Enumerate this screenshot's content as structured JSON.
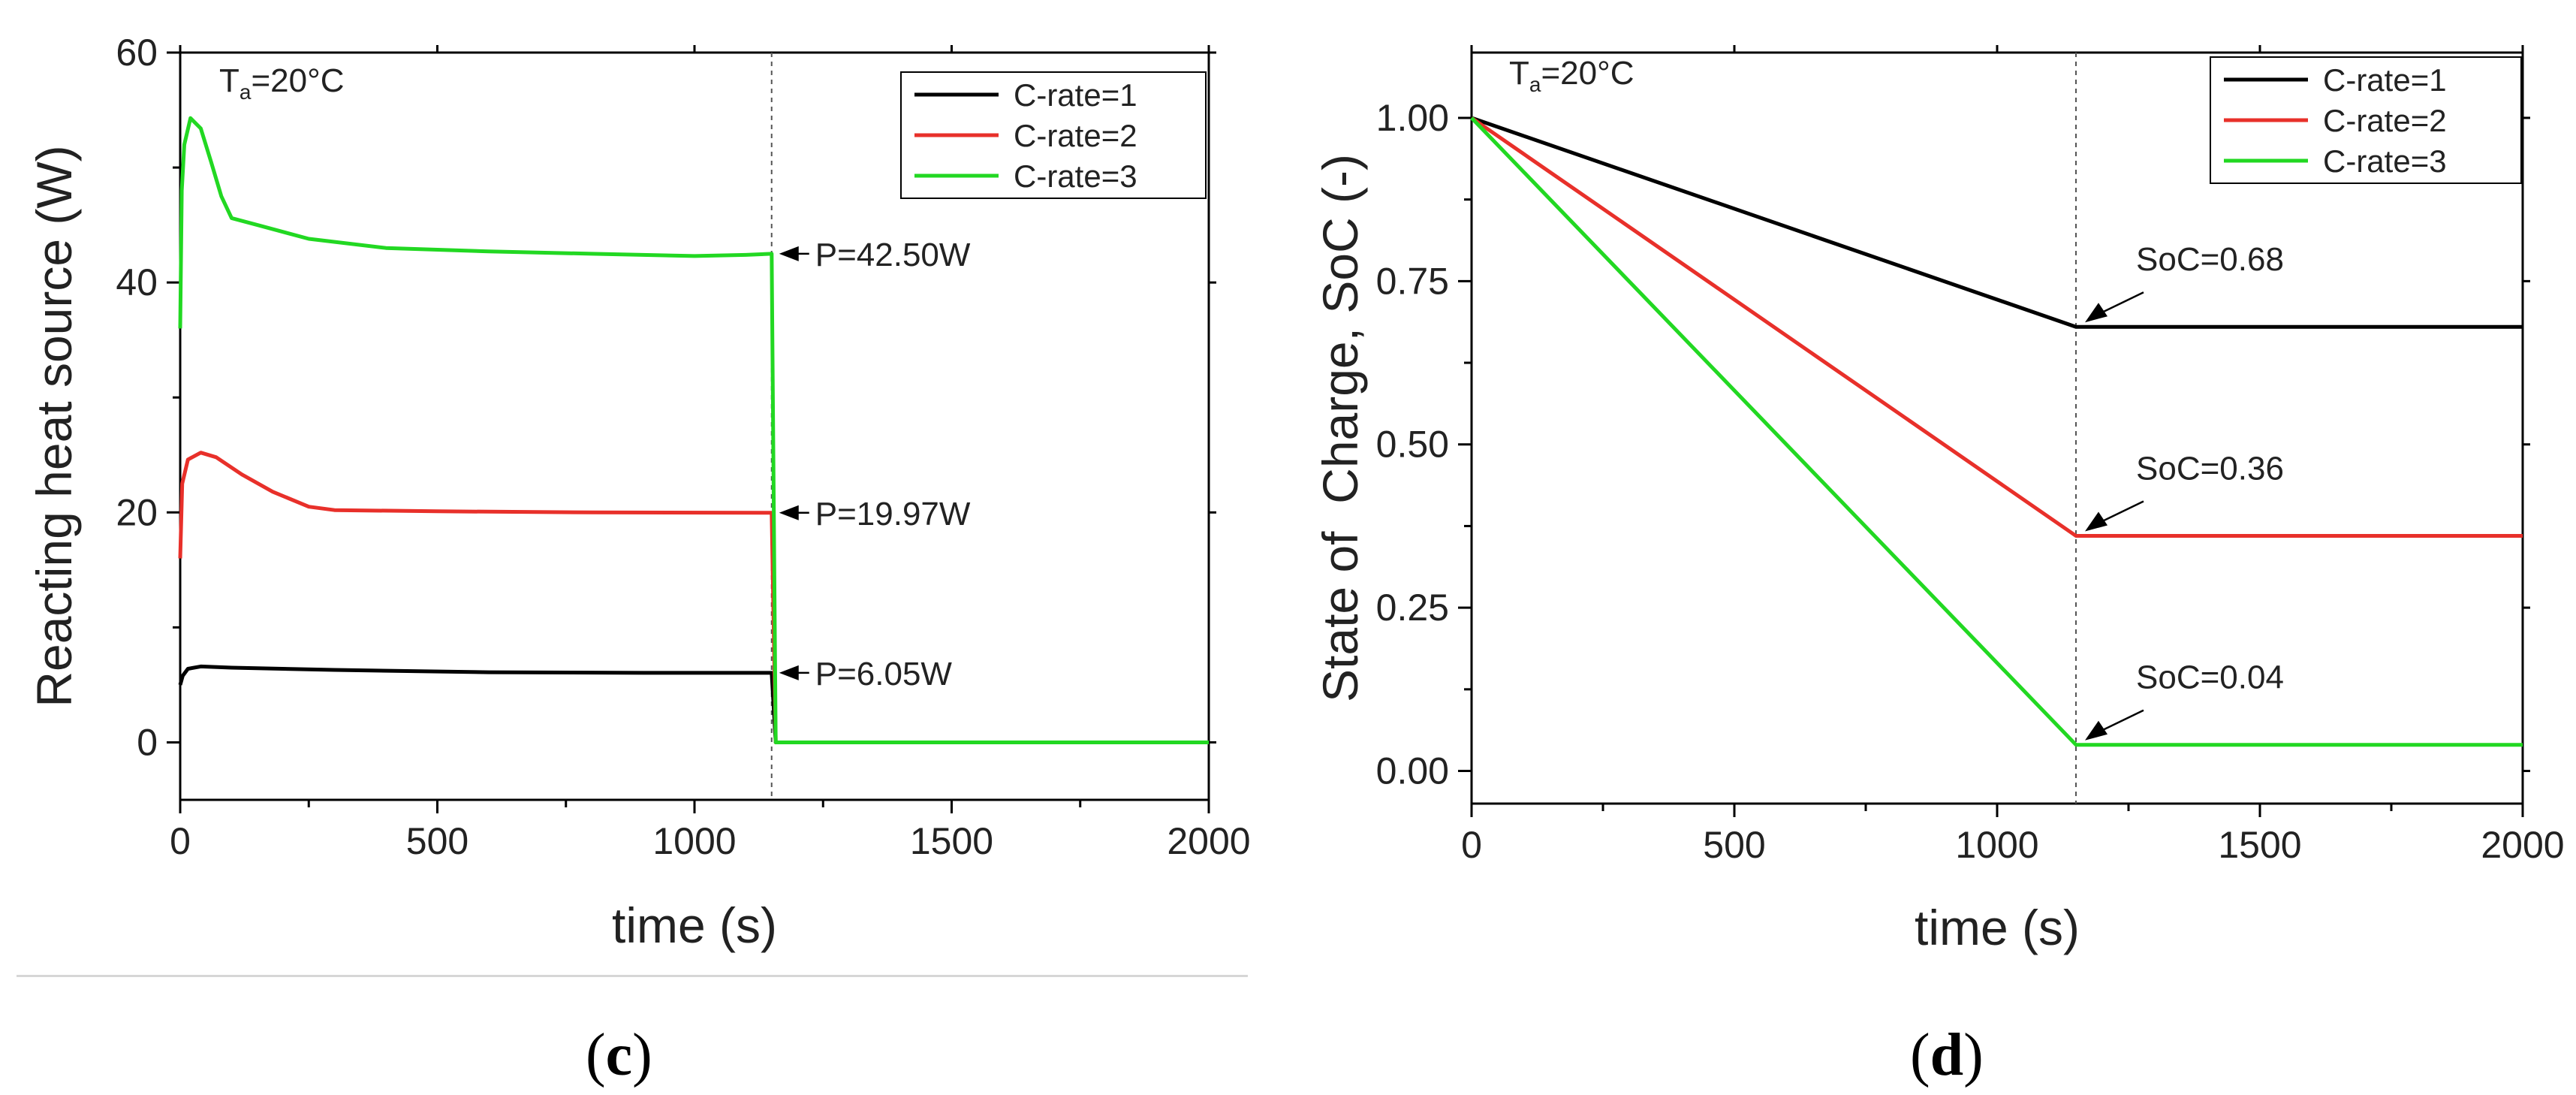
{
  "figure": {
    "panels": [
      {
        "label_open": "(",
        "label_letter": "c",
        "label_close": ")"
      },
      {
        "label_open": "(",
        "label_letter": "d",
        "label_close": ")"
      }
    ]
  },
  "chart_data": [
    {
      "type": "line",
      "title": "",
      "temperature_label": "Ta=20°C",
      "xlabel": "time (s)",
      "ylabel": "Reacting heat source (W)",
      "xlim": [
        0,
        2000
      ],
      "ylim": [
        -5,
        60
      ],
      "x_ticks": [
        0,
        500,
        1000,
        1500,
        2000
      ],
      "y_ticks": [
        0,
        20,
        40,
        60
      ],
      "legend_position": "top-right",
      "grid": false,
      "dashed_vline_x": 1150,
      "series": [
        {
          "name": "C-rate=1",
          "color": "#000000",
          "points": [
            [
              0,
              5
            ],
            [
              5,
              5.8
            ],
            [
              15,
              6.4
            ],
            [
              40,
              6.6
            ],
            [
              100,
              6.5
            ],
            [
              300,
              6.3
            ],
            [
              600,
              6.1
            ],
            [
              900,
              6.05
            ],
            [
              1150,
              6.05
            ],
            [
              1158,
              0
            ],
            [
              2000,
              0
            ]
          ]
        },
        {
          "name": "C-rate=2",
          "color": "#e8302a",
          "points": [
            [
              0,
              16
            ],
            [
              4,
              22.5
            ],
            [
              15,
              24.6
            ],
            [
              40,
              25.2
            ],
            [
              70,
              24.8
            ],
            [
              120,
              23.3
            ],
            [
              180,
              21.8
            ],
            [
              250,
              20.5
            ],
            [
              300,
              20.2
            ],
            [
              500,
              20.1
            ],
            [
              800,
              20.0
            ],
            [
              1150,
              19.97
            ],
            [
              1158,
              0
            ],
            [
              2000,
              0
            ]
          ]
        },
        {
          "name": "C-rate=3",
          "color": "#22d822",
          "points": [
            [
              0,
              36
            ],
            [
              3,
              48
            ],
            [
              8,
              52
            ],
            [
              20,
              54.3
            ],
            [
              40,
              53.4
            ],
            [
              60,
              50.5
            ],
            [
              80,
              47.5
            ],
            [
              100,
              45.6
            ],
            [
              150,
              45.0
            ],
            [
              250,
              43.8
            ],
            [
              400,
              43.0
            ],
            [
              600,
              42.7
            ],
            [
              800,
              42.5
            ],
            [
              1000,
              42.3
            ],
            [
              1100,
              42.4
            ],
            [
              1150,
              42.5
            ],
            [
              1158,
              0
            ],
            [
              2000,
              0
            ]
          ]
        }
      ],
      "annotations": [
        {
          "text": "P=42.50W",
          "x": 1150,
          "y": 42.5
        },
        {
          "text": "P=19.97W",
          "x": 1150,
          "y": 19.97
        },
        {
          "text": "P=6.05W",
          "x": 1150,
          "y": 6.05
        }
      ]
    },
    {
      "type": "line",
      "title": "",
      "temperature_label": "Ta=20°C",
      "xlabel": "time (s)",
      "ylabel": "State of  Charge, SoC (-)",
      "xlim": [
        0,
        2000
      ],
      "ylim": [
        -0.05,
        1.1
      ],
      "x_ticks": [
        0,
        500,
        1000,
        1500,
        2000
      ],
      "y_ticks": [
        "0.00",
        "0.25",
        "0.50",
        "0.75",
        "1.00"
      ],
      "legend_position": "top-right",
      "grid": false,
      "dashed_vline_x": 1150,
      "series": [
        {
          "name": "C-rate=1",
          "color": "#000000",
          "points": [
            [
              0,
              1.0
            ],
            [
              1150,
              0.68
            ],
            [
              2000,
              0.68
            ]
          ]
        },
        {
          "name": "C-rate=2",
          "color": "#e8302a",
          "points": [
            [
              0,
              1.0
            ],
            [
              1150,
              0.36
            ],
            [
              2000,
              0.36
            ]
          ]
        },
        {
          "name": "C-rate=3",
          "color": "#22d822",
          "points": [
            [
              0,
              1.0
            ],
            [
              1150,
              0.04
            ],
            [
              2000,
              0.04
            ]
          ]
        }
      ],
      "annotations": [
        {
          "text": "SoC=0.68",
          "x": 1150,
          "y": 0.68
        },
        {
          "text": "SoC=0.36",
          "x": 1150,
          "y": 0.36
        },
        {
          "text": "SoC=0.04",
          "x": 1150,
          "y": 0.04
        }
      ]
    }
  ]
}
